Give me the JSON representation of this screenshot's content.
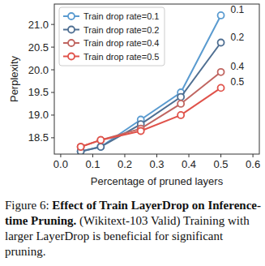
{
  "chart_data": {
    "type": "line",
    "x_label": "Percentage of pruned layers",
    "y_label": "Perplexity",
    "x": [
      0.0625,
      0.125,
      0.25,
      0.375,
      0.5
    ],
    "series": [
      {
        "name": "Train drop rate=0.1",
        "color": "#5a9bd0",
        "marker": "circle",
        "values": [
          18.2,
          18.3,
          18.9,
          19.5,
          21.2
        ]
      },
      {
        "name": "Train drop rate=0.2",
        "color": "#4f6f92",
        "marker": "circle",
        "values": [
          18.2,
          18.3,
          18.8,
          19.4,
          20.6
        ]
      },
      {
        "name": "Train drop rate=0.4",
        "color": "#c06560",
        "marker": "circle",
        "values": [
          18.3,
          18.45,
          18.7,
          19.25,
          19.95
        ]
      },
      {
        "name": "Train drop rate=0.5",
        "color": "#e0524a",
        "marker": "circle",
        "values": [
          18.3,
          18.45,
          18.65,
          19.0,
          19.6
        ]
      }
    ],
    "annotations": [
      {
        "text": "0.1",
        "x": 0.5,
        "y": 21.2
      },
      {
        "text": "0.2",
        "x": 0.5,
        "y": 20.6
      },
      {
        "text": "0.4",
        "x": 0.5,
        "y": 19.95
      },
      {
        "text": "0.5",
        "x": 0.5,
        "y": 19.6
      }
    ],
    "xlim": [
      -0.02,
      0.62
    ],
    "ylim": [
      18.14,
      21.45
    ],
    "xticks": [
      {
        "value": 0,
        "label": "0.0"
      },
      0.1,
      0.2,
      0.3,
      0.4,
      0.5,
      0.6
    ],
    "yticks": [
      18.5,
      {
        "value": 19,
        "label": "19.0"
      },
      19.5,
      {
        "value": 20,
        "label": "20.0"
      },
      20.5,
      {
        "value": 21,
        "label": "21.0"
      }
    ],
    "grid": false,
    "legend": "upper left"
  },
  "caption": {
    "label": "Figure 6:",
    "bold": "Effect of Train LayerDrop on Inference-time Pruning.",
    "text": "(Wikitext-103 Valid) Training with larger LayerDrop is beneficial for significant pruning."
  }
}
